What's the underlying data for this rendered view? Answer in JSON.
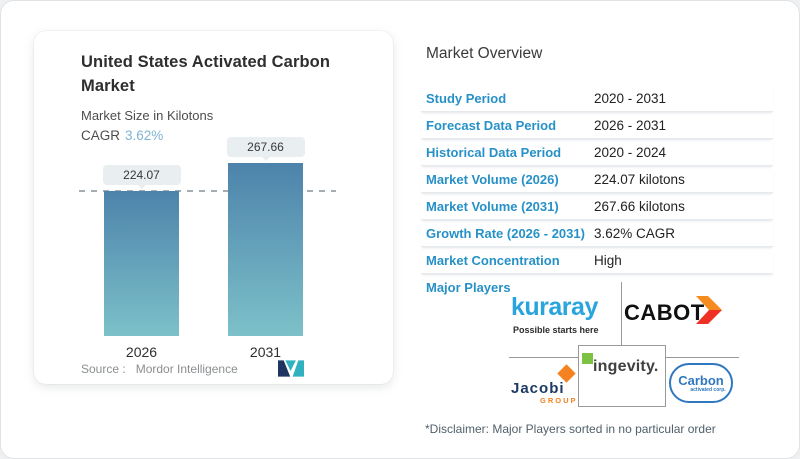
{
  "left_card": {
    "title": "United States Activated Carbon Market",
    "subtitle": "Market Size in Kilotons",
    "cagr_label": "CAGR",
    "cagr_value": "3.62%",
    "source_label": "Source :",
    "source_value": "Mordor Intelligence"
  },
  "chart_data": {
    "type": "bar",
    "title": "United States Activated Carbon Market",
    "ylabel": "Market Size in Kilotons",
    "unit": "kilotons",
    "categories": [
      "2026",
      "2031"
    ],
    "values": [
      224.07,
      267.66
    ],
    "data_labels": [
      "224.07",
      "267.66"
    ],
    "ylim": [
      0,
      267.66
    ],
    "reference_line": {
      "value": 224.07,
      "style": "dashed"
    },
    "grid": false,
    "legend": false
  },
  "overview": {
    "heading": "Market Overview",
    "rows": [
      {
        "label": "Study Period",
        "value": "2020 - 2031"
      },
      {
        "label": "Forecast Data Period",
        "value": "2026 - 2031"
      },
      {
        "label": "Historical Data Period",
        "value": "2020 - 2024"
      },
      {
        "label": "Market Volume (2026)",
        "value": "224.07 kilotons"
      },
      {
        "label": "Market Volume (2031)",
        "value": "267.66 kilotons"
      },
      {
        "label": "Growth Rate (2026 - 2031)",
        "value": "3.62% CAGR"
      },
      {
        "label": "Market Concentration",
        "value": "High"
      }
    ],
    "major_players_label": "Major Players",
    "disclaimer": "*Disclaimer: Major Players sorted in no particular order"
  },
  "players": {
    "kuraray": {
      "name": "kuraray",
      "tagline": "Possible starts here"
    },
    "cabot": {
      "name": "CABOT"
    },
    "jacobi": {
      "name": "Jacobi",
      "sub": "GROUP"
    },
    "ingevity": {
      "name": "ingevity."
    },
    "carbon": {
      "name": "Carbon",
      "sub": "activated corp."
    }
  },
  "colors": {
    "label_blue": "#2791c7",
    "cagr_blue": "#7fb4d2",
    "bar_top": "#4d83ab",
    "bar_bottom": "#7cc1c9",
    "kuraray_blue": "#29a4dd",
    "cabot_orange": "#f68b1f",
    "cabot_red": "#ee3124",
    "jacobi_navy": "#1c3a63",
    "jacobi_orange": "#f58220",
    "ingevity_green": "#7dc242",
    "ingevity_dark": "#3f4040",
    "carbon_blue": "#2f78bf",
    "mordor_navy": "#1d3560",
    "mordor_teal": "#31b0bf"
  }
}
